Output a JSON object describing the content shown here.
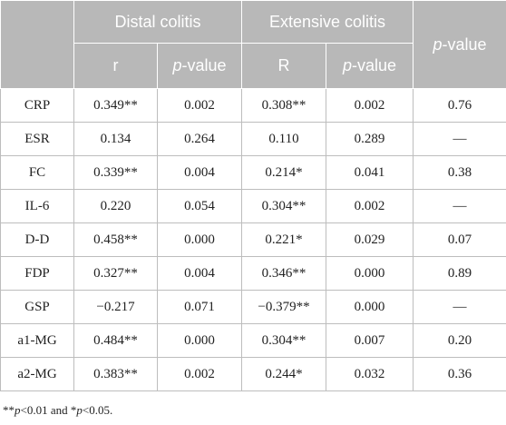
{
  "header": {
    "group1": "Distal colitis",
    "group2": "Extensive colitis",
    "pvalue": {
      "italic": "p",
      "rest": "-value"
    },
    "sub": {
      "g1_r": "r",
      "g1_p": {
        "italic": "p",
        "rest": "-value"
      },
      "g2_r": "R",
      "g2_p": {
        "italic": "p",
        "rest": "-value"
      }
    }
  },
  "rows": [
    {
      "label": "CRP",
      "r1": "0.349**",
      "p1": "0.002",
      "r2": "0.308**",
      "p2": "0.002",
      "p": "0.76"
    },
    {
      "label": "ESR",
      "r1": "0.134",
      "p1": "0.264",
      "r2": "0.110",
      "p2": "0.289",
      "p": "—"
    },
    {
      "label": "FC",
      "r1": "0.339**",
      "p1": "0.004",
      "r2": "0.214*",
      "p2": "0.041",
      "p": "0.38"
    },
    {
      "label": "IL-6",
      "r1": "0.220",
      "p1": "0.054",
      "r2": "0.304**",
      "p2": "0.002",
      "p": "—"
    },
    {
      "label": "D-D",
      "r1": "0.458**",
      "p1": "0.000",
      "r2": "0.221*",
      "p2": "0.029",
      "p": "0.07"
    },
    {
      "label": "FDP",
      "r1": "0.327**",
      "p1": "0.004",
      "r2": "0.346**",
      "p2": "0.000",
      "p": "0.89"
    },
    {
      "label": "GSP",
      "r1": "−0.217",
      "p1": "0.071",
      "r2": "−0.379**",
      "p2": "0.000",
      "p": "—"
    },
    {
      "label": "a1-MG",
      "r1": "0.484**",
      "p1": "0.000",
      "r2": "0.304**",
      "p2": "0.007",
      "p": "0.20"
    },
    {
      "label": "a2-MG",
      "r1": "0.383**",
      "p1": "0.002",
      "r2": "0.244*",
      "p2": "0.032",
      "p": "0.36"
    }
  ],
  "footnote": {
    "part1": "**",
    "p_a": "p",
    "part2": "<0.01 and *",
    "p_b": "p",
    "part3": "<0.05."
  }
}
